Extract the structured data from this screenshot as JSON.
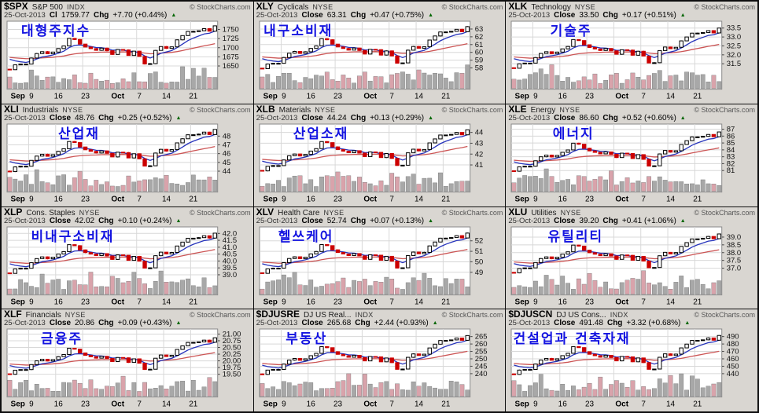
{
  "page": {
    "brand_credit": "© StockCharts.com",
    "date": "25-Oct-2013",
    "chg_label": "Chg",
    "up_arrow": "▲"
  },
  "colors": {
    "candle_up_fill": "#ffffff",
    "candle_up_stroke": "#000000",
    "candle_down": "#cc0000",
    "ma_fast_blue": "#2633bb",
    "ma_slow_red": "#cc5555",
    "volume_up": "#a8a8a8",
    "volume_down": "#d9a3ab",
    "grid": "#d8d8d8",
    "plot_border": "#8a8a8a",
    "plot_bg": "#ffffff",
    "tile_bg": "#d9d6d1",
    "annotation_blue": "#1414e0",
    "change_up_green": "#006600"
  },
  "chart_data": {
    "type": "candlestick+volume grid, daily bars Sep–Oct 2013, 12 sector panels (4 rows x 3 cols), 20/50-period MA overlays (blue/red), legend off, right price axis",
    "x_ticks": {
      "labels": [
        "Sep",
        "9",
        "16",
        "23",
        "Oct",
        "7",
        "14",
        "21"
      ],
      "positions": [
        1.5,
        4,
        9,
        14,
        20,
        24,
        29,
        34
      ],
      "bold": [
        true,
        false,
        false,
        false,
        true,
        false,
        false,
        false
      ]
    },
    "n_candles": 39,
    "shape_norm_closes": [
      0.0,
      0.111,
      0.128,
      0.128,
      0.266,
      0.368,
      0.411,
      0.363,
      0.402,
      0.482,
      0.542,
      0.714,
      0.688,
      0.584,
      0.517,
      0.48,
      0.442,
      0.491,
      0.433,
      0.348,
      0.46,
      0.451,
      0.324,
      0.423,
      0.303,
      0.131,
      0.138,
      0.44,
      0.528,
      0.486,
      0.521,
      0.681,
      0.778,
      0.873,
      0.874,
      0.888,
      0.936,
      0.878,
      1.0
    ],
    "panels": [
      {
        "symbol": "$SPX",
        "name": "S&P 500",
        "exchange": "INDX",
        "close_label": "Cl",
        "close": "1759.77",
        "chg": "+7.70 (+0.44%)",
        "annotation": "대형주지수",
        "annot_left_pct": 7,
        "y_tick_labels": [
          "1750",
          "1725",
          "1700",
          "1675",
          "1650"
        ],
        "y_tick_values": [
          1750,
          1725,
          1700,
          1675,
          1650
        ],
        "ylim": [
          1634,
          1766
        ],
        "price_lo": 1639.8,
        "price_hi": 1759.8
      },
      {
        "symbol": "XLY",
        "name": "Cyclicals",
        "exchange": "NYSE",
        "close_label": "Close",
        "close": "63.31",
        "chg": "+0.47 (+0.75%)",
        "annotation": "내구소비재",
        "annot_left_pct": 3,
        "y_tick_labels": [
          "63",
          "62",
          "61",
          "60",
          "59",
          "58"
        ],
        "y_tick_values": [
          63,
          62,
          61,
          60,
          59,
          58
        ],
        "ylim": [
          57.5,
          63.7
        ],
        "price_lo": 57.9,
        "price_hi": 63.31
      },
      {
        "symbol": "XLK",
        "name": "Technology",
        "exchange": "NYSE",
        "close_label": "Close",
        "close": "33.50",
        "chg": "+0.17 (+0.51%)",
        "annotation": "기술주",
        "annot_left_pct": 17,
        "y_tick_labels": [
          "33.5",
          "33.0",
          "32.5",
          "32.0",
          "31.5"
        ],
        "y_tick_values": [
          33.5,
          33.0,
          32.5,
          32.0,
          31.5
        ],
        "ylim": [
          31.05,
          33.75
        ],
        "price_lo": 31.25,
        "price_hi": 33.5
      },
      {
        "symbol": "XLI",
        "name": "Industrials",
        "exchange": "NYSE",
        "close_label": "Close",
        "close": "48.76",
        "chg": "+0.25 (+0.52%)",
        "annotation": "산업재",
        "annot_left_pct": 22,
        "y_tick_labels": [
          "48",
          "47",
          "46",
          "45",
          "44"
        ],
        "y_tick_values": [
          48,
          47,
          46,
          45,
          44
        ],
        "ylim": [
          43.6,
          49.1
        ],
        "price_lo": 43.95,
        "price_hi": 48.76
      },
      {
        "symbol": "XLB",
        "name": "Materials",
        "exchange": "NYSE",
        "close_label": "Close",
        "close": "44.24",
        "chg": "+0.13 (+0.29%)",
        "annotation": "산업소재",
        "annot_left_pct": 15,
        "y_tick_labels": [
          "44",
          "43",
          "42",
          "41"
        ],
        "y_tick_values": [
          44,
          43,
          42,
          41
        ],
        "ylim": [
          40.1,
          44.55
        ],
        "price_lo": 40.45,
        "price_hi": 44.24
      },
      {
        "symbol": "XLE",
        "name": "Energy",
        "exchange": "NYSE",
        "close_label": "Close",
        "close": "86.60",
        "chg": "+0.52 (+0.60%)",
        "annotation": "에너지",
        "annot_left_pct": 18,
        "y_tick_labels": [
          "87",
          "86",
          "85",
          "84",
          "83",
          "82",
          "81"
        ],
        "y_tick_values": [
          87,
          86,
          85,
          84,
          83,
          82,
          81
        ],
        "ylim": [
          80.4,
          87.4
        ],
        "price_lo": 80.9,
        "price_hi": 86.6
      },
      {
        "symbol": "XLP",
        "name": "Cons. Staples",
        "exchange": "NYSE",
        "close_label": "Close",
        "close": "42.02",
        "chg": "+0.10 (+0.24%)",
        "annotation": "비내구소비재",
        "annot_left_pct": 11,
        "y_tick_labels": [
          "42.0",
          "41.5",
          "41.0",
          "40.5",
          "40.0",
          "39.5",
          "39.0"
        ],
        "y_tick_values": [
          42.0,
          41.5,
          41.0,
          40.5,
          40.0,
          39.5,
          39.0
        ],
        "ylim": [
          38.8,
          42.3
        ],
        "price_lo": 39.1,
        "price_hi": 42.02
      },
      {
        "symbol": "XLV",
        "name": "Health Care",
        "exchange": "NYSE",
        "close_label": "Close",
        "close": "52.74",
        "chg": "+0.07 (+0.13%)",
        "annotation": "헬쓰케어",
        "annot_left_pct": 9,
        "y_tick_labels": [
          "52",
          "51",
          "50",
          "49"
        ],
        "y_tick_values": [
          52,
          51,
          50,
          49
        ],
        "ylim": [
          48.5,
          53.1
        ],
        "price_lo": 48.9,
        "price_hi": 52.74
      },
      {
        "symbol": "XLU",
        "name": "Utilities",
        "exchange": "NYSE",
        "close_label": "Close",
        "close": "39.20",
        "chg": "+0.41 (+1.06%)",
        "annotation": "유틸리티",
        "annot_left_pct": 16,
        "y_tick_labels": [
          "39.0",
          "38.5",
          "38.0",
          "37.5",
          "37.0"
        ],
        "y_tick_values": [
          39.0,
          38.5,
          38.0,
          37.5,
          37.0
        ],
        "ylim": [
          36.4,
          39.5
        ],
        "price_lo": 36.7,
        "price_hi": 39.2
      },
      {
        "symbol": "XLF",
        "name": "Financials",
        "exchange": "NYSE",
        "close_label": "Close",
        "close": "20.86",
        "chg": "+0.09 (+0.43%)",
        "annotation": "금융주",
        "annot_left_pct": 15,
        "y_tick_labels": [
          "21.00",
          "20.75",
          "20.50",
          "20.25",
          "20.00",
          "19.75",
          "19.50"
        ],
        "y_tick_values": [
          21.0,
          20.75,
          20.5,
          20.25,
          20.0,
          19.75,
          19.5
        ],
        "ylim": [
          19.3,
          21.1
        ],
        "price_lo": 19.5,
        "price_hi": 20.86
      },
      {
        "symbol": "$DJUSRE",
        "name": "DJ US Real...",
        "exchange": "INDX",
        "close_label": "Close",
        "close": "265.68",
        "chg": "+2.44 (+0.93%)",
        "annotation": "부동산",
        "annot_left_pct": 12,
        "y_tick_labels": [
          "265",
          "260",
          "255",
          "250",
          "245",
          "240"
        ],
        "y_tick_values": [
          265,
          260,
          255,
          250,
          245,
          240
        ],
        "ylim": [
          236,
          268.5
        ],
        "price_lo": 239.5,
        "price_hi": 265.68
      },
      {
        "symbol": "$DJUSCN",
        "name": "DJ US Cons...",
        "exchange": "INDX",
        "close_label": "Close",
        "close": "491.48",
        "chg": "+3.32 (+0.68%)",
        "annotation": "건설업과 건축자재",
        "annot_left_pct": 2,
        "y_tick_labels": [
          "490",
          "480",
          "470",
          "460",
          "450",
          "440"
        ],
        "y_tick_values": [
          490,
          480,
          470,
          460,
          450,
          440
        ],
        "ylim": [
          432,
          497
        ],
        "price_lo": 439,
        "price_hi": 491.48
      }
    ]
  }
}
